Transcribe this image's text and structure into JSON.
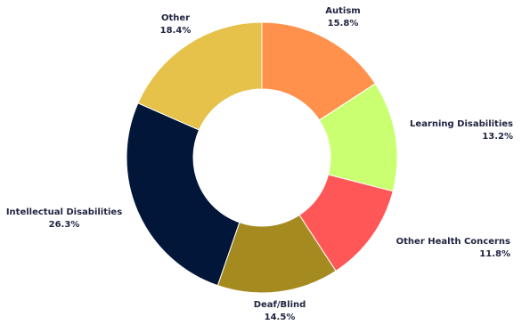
{
  "chart_data": {
    "type": "pie",
    "donut": true,
    "categories": [
      "Autism",
      "Learning Disabilities",
      "Other Health Concerns",
      "Deaf/Blind",
      "Intellectual Disabilities",
      "Other"
    ],
    "values": [
      15.8,
      13.2,
      11.8,
      14.5,
      26.3,
      18.4
    ],
    "value_labels": [
      "15.8%",
      "13.2%",
      "11.8%",
      "14.5%",
      "26.3%",
      "18.4%"
    ],
    "colors": [
      "#FF914D",
      "#C9FF70",
      "#FF5757",
      "#A48A1F",
      "#011638",
      "#E6C24A"
    ],
    "start_angle_deg": 0,
    "direction": "clockwise",
    "legend": "none"
  }
}
